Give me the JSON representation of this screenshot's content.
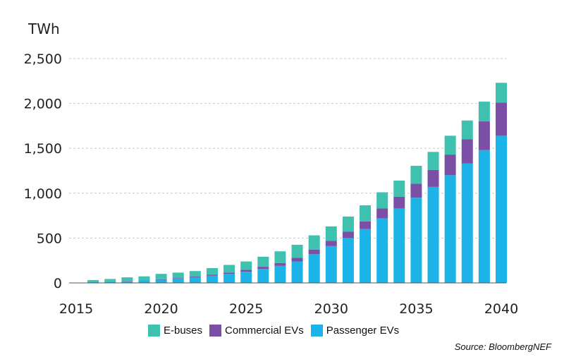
{
  "chart_data": {
    "type": "bar",
    "stacked": true,
    "unit_label": "TWh",
    "x": [
      2016,
      2017,
      2018,
      2019,
      2020,
      2021,
      2022,
      2023,
      2024,
      2025,
      2026,
      2027,
      2028,
      2029,
      2030,
      2031,
      2032,
      2033,
      2034,
      2035,
      2036,
      2037,
      2038,
      2039,
      2040
    ],
    "x_ticks": [
      "2015",
      "2020",
      "2025",
      "2030",
      "2035",
      "2040"
    ],
    "x_range": [
      2015,
      2040
    ],
    "y_ticks": [
      "0",
      "500",
      "1,000",
      "1,500",
      "2,000",
      "2,500"
    ],
    "ylim": [
      0,
      2500
    ],
    "grid": "horizontal-dashed",
    "legend_position": "bottom",
    "series": [
      {
        "name": "Passenger EVs",
        "color": "#1cb4e8",
        "values": [
          10,
          14,
          18,
          25,
          35,
          45,
          60,
          80,
          100,
          125,
          155,
          190,
          240,
          320,
          410,
          500,
          600,
          720,
          830,
          950,
          1070,
          1200,
          1330,
          1480,
          1640
        ]
      },
      {
        "name": "Commercial EVs",
        "color": "#7b4fa6",
        "values": [
          2,
          3,
          4,
          5,
          6,
          8,
          10,
          13,
          16,
          20,
          25,
          32,
          40,
          50,
          60,
          70,
          85,
          110,
          130,
          155,
          190,
          230,
          270,
          320,
          370
        ]
      },
      {
        "name": "E-buses",
        "color": "#3ec1ae",
        "values": [
          20,
          27,
          40,
          43,
          60,
          62,
          62,
          72,
          85,
          94,
          112,
          130,
          145,
          160,
          160,
          170,
          180,
          180,
          180,
          200,
          200,
          210,
          210,
          220,
          220
        ]
      }
    ]
  },
  "legend": {
    "items": [
      {
        "label": "E-buses",
        "color": "#3ec1ae"
      },
      {
        "label": "Commercial EVs",
        "color": "#7b4fa6"
      },
      {
        "label": "Passenger EVs",
        "color": "#1cb4e8"
      }
    ]
  },
  "source": "Source: BloombergNEF"
}
